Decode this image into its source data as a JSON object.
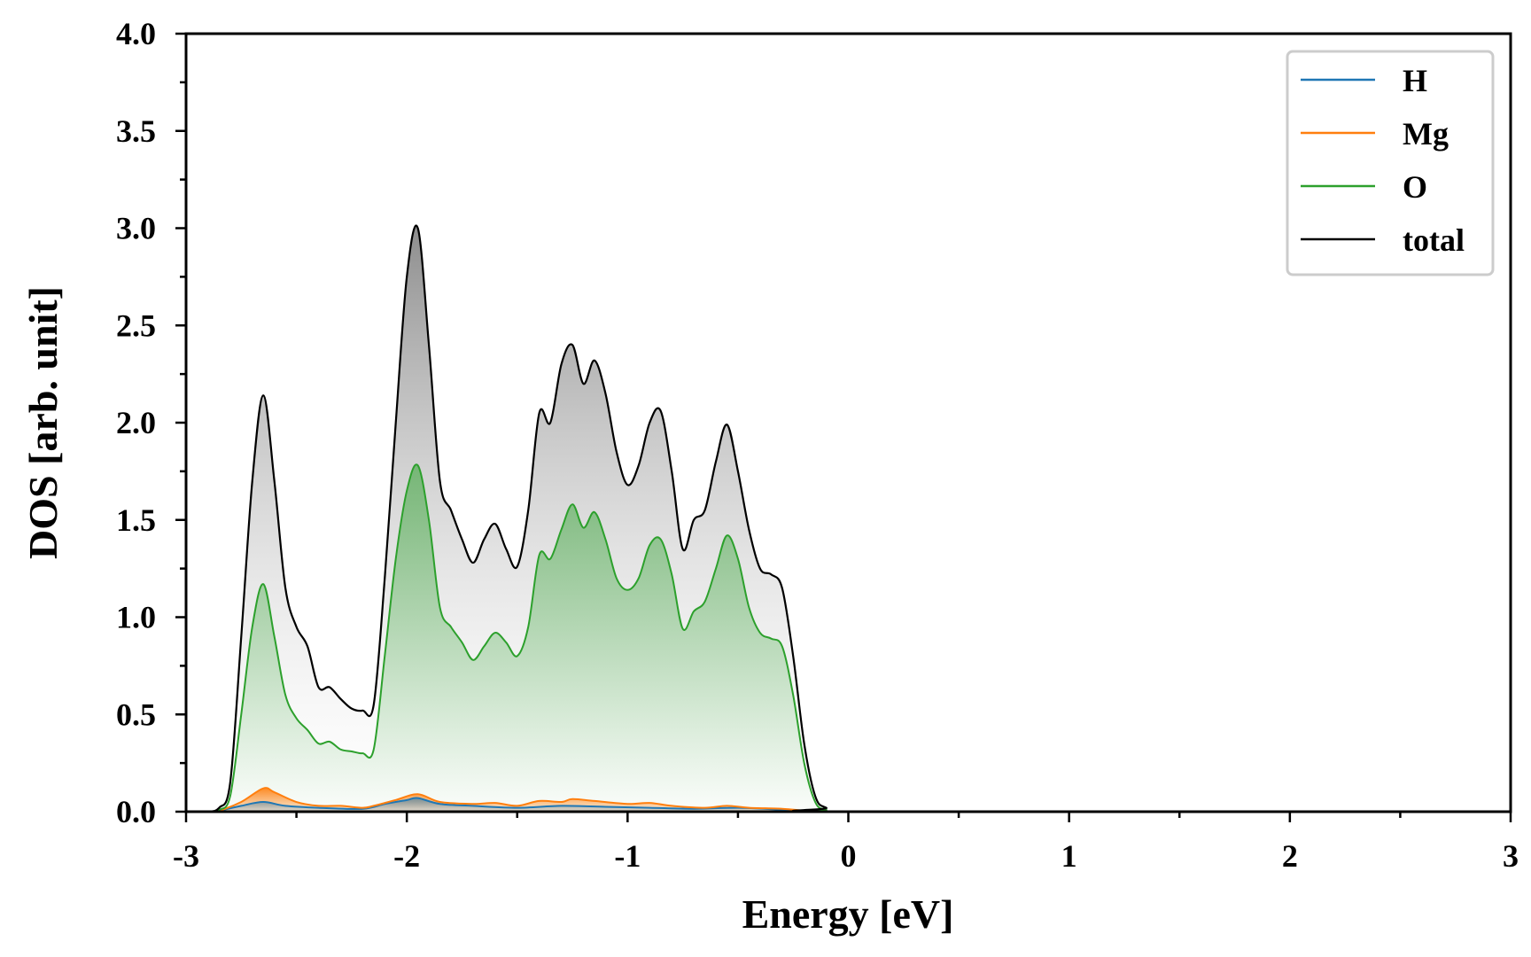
{
  "chart_data": {
    "type": "area",
    "xlabel": "Energy [eV]",
    "ylabel": "DOS [arb. unit]",
    "xlim": [
      -3,
      3
    ],
    "ylim": [
      0,
      4.0
    ],
    "x_ticks": [
      -3,
      -2,
      -1,
      0,
      1,
      2,
      3
    ],
    "x_tick_labels": [
      "-3",
      "-2",
      "-1",
      "0",
      "1",
      "2",
      "3"
    ],
    "y_ticks": [
      0,
      0.5,
      1.0,
      1.5,
      2.0,
      2.5,
      3.0,
      3.5,
      4.0
    ],
    "y_tick_labels": [
      "0.0",
      "0.5",
      "1.0",
      "1.5",
      "2.0",
      "2.5",
      "3.0",
      "3.5",
      "4.0"
    ],
    "grid": false,
    "legend_position": "top-right",
    "series": [
      {
        "name": "H",
        "color": "#1f77b4",
        "x": [
          -3.0,
          -2.9,
          -2.85,
          -2.75,
          -2.65,
          -2.55,
          -2.4,
          -2.2,
          -2.1,
          -2.0,
          -1.95,
          -1.85,
          -1.7,
          -1.5,
          -1.3,
          -1.1,
          -0.9,
          -0.7,
          -0.5,
          -0.3,
          -0.2,
          -0.15,
          -0.1,
          0.0,
          3.0
        ],
        "y": [
          0,
          0,
          0.005,
          0.03,
          0.05,
          0.03,
          0.02,
          0.015,
          0.04,
          0.06,
          0.07,
          0.04,
          0.03,
          0.02,
          0.03,
          0.025,
          0.02,
          0.015,
          0.02,
          0.01,
          0.005,
          0.002,
          0,
          0,
          0
        ]
      },
      {
        "name": "Mg",
        "color": "#ff7f0e",
        "x": [
          -3.0,
          -2.9,
          -2.85,
          -2.75,
          -2.65,
          -2.6,
          -2.5,
          -2.4,
          -2.3,
          -2.2,
          -2.15,
          -2.05,
          -1.95,
          -1.85,
          -1.7,
          -1.6,
          -1.5,
          -1.4,
          -1.3,
          -1.25,
          -1.15,
          -1.0,
          -0.9,
          -0.8,
          -0.65,
          -0.55,
          -0.45,
          -0.3,
          -0.2,
          -0.15,
          -0.1,
          0.0,
          3.0
        ],
        "y": [
          0,
          0,
          0.005,
          0.05,
          0.12,
          0.1,
          0.05,
          0.03,
          0.03,
          0.02,
          0.03,
          0.06,
          0.09,
          0.05,
          0.04,
          0.045,
          0.03,
          0.055,
          0.05,
          0.065,
          0.055,
          0.04,
          0.045,
          0.03,
          0.02,
          0.03,
          0.02,
          0.015,
          0.005,
          0.002,
          0,
          0,
          0
        ]
      },
      {
        "name": "O",
        "color": "#2ca02c",
        "x": [
          -3.0,
          -2.9,
          -2.85,
          -2.8,
          -2.75,
          -2.7,
          -2.65,
          -2.6,
          -2.55,
          -2.5,
          -2.45,
          -2.4,
          -2.35,
          -2.3,
          -2.25,
          -2.2,
          -2.15,
          -2.1,
          -2.05,
          -2.0,
          -1.95,
          -1.9,
          -1.85,
          -1.8,
          -1.75,
          -1.7,
          -1.65,
          -1.6,
          -1.55,
          -1.5,
          -1.45,
          -1.4,
          -1.35,
          -1.3,
          -1.25,
          -1.2,
          -1.15,
          -1.1,
          -1.05,
          -1.0,
          -0.95,
          -0.9,
          -0.85,
          -0.8,
          -0.75,
          -0.7,
          -0.65,
          -0.6,
          -0.55,
          -0.5,
          -0.45,
          -0.4,
          -0.35,
          -0.3,
          -0.25,
          -0.2,
          -0.15,
          -0.1,
          0.0,
          3.0
        ],
        "y": [
          0,
          0,
          0.01,
          0.08,
          0.5,
          0.95,
          1.17,
          0.9,
          0.6,
          0.48,
          0.42,
          0.35,
          0.36,
          0.32,
          0.31,
          0.3,
          0.32,
          0.8,
          1.3,
          1.65,
          1.78,
          1.5,
          1.05,
          0.95,
          0.87,
          0.78,
          0.85,
          0.92,
          0.87,
          0.8,
          0.95,
          1.32,
          1.3,
          1.45,
          1.58,
          1.46,
          1.54,
          1.4,
          1.2,
          1.14,
          1.2,
          1.37,
          1.4,
          1.22,
          0.94,
          1.03,
          1.08,
          1.25,
          1.42,
          1.3,
          1.05,
          0.92,
          0.89,
          0.85,
          0.6,
          0.25,
          0.05,
          0.01,
          0,
          0
        ]
      },
      {
        "name": "total",
        "color": "#000000",
        "x": [
          -3.0,
          -2.9,
          -2.85,
          -2.8,
          -2.75,
          -2.7,
          -2.65,
          -2.6,
          -2.55,
          -2.5,
          -2.45,
          -2.4,
          -2.35,
          -2.3,
          -2.25,
          -2.2,
          -2.15,
          -2.1,
          -2.05,
          -2.0,
          -1.95,
          -1.9,
          -1.85,
          -1.8,
          -1.75,
          -1.7,
          -1.65,
          -1.6,
          -1.55,
          -1.5,
          -1.45,
          -1.4,
          -1.35,
          -1.3,
          -1.25,
          -1.2,
          -1.15,
          -1.1,
          -1.05,
          -1.0,
          -0.95,
          -0.9,
          -0.85,
          -0.8,
          -0.75,
          -0.7,
          -0.65,
          -0.6,
          -0.55,
          -0.5,
          -0.45,
          -0.4,
          -0.35,
          -0.3,
          -0.25,
          -0.2,
          -0.15,
          -0.1,
          0.0,
          3.0
        ],
        "y": [
          0,
          0,
          0.02,
          0.15,
          0.9,
          1.7,
          2.14,
          1.7,
          1.15,
          0.95,
          0.85,
          0.64,
          0.64,
          0.58,
          0.53,
          0.52,
          0.55,
          1.2,
          2.0,
          2.75,
          3.0,
          2.4,
          1.7,
          1.55,
          1.4,
          1.28,
          1.4,
          1.48,
          1.35,
          1.26,
          1.55,
          2.05,
          2.0,
          2.3,
          2.4,
          2.2,
          2.32,
          2.15,
          1.85,
          1.68,
          1.78,
          2.0,
          2.06,
          1.75,
          1.35,
          1.5,
          1.55,
          1.8,
          1.99,
          1.75,
          1.45,
          1.25,
          1.22,
          1.15,
          0.8,
          0.35,
          0.08,
          0.02,
          0,
          0
        ]
      }
    ]
  }
}
